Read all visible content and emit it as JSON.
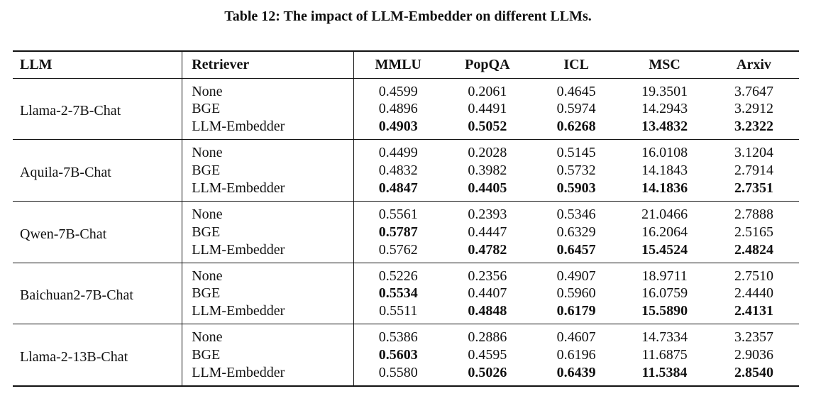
{
  "caption": "Table 12: The impact of LLM-Embedder on different LLMs.",
  "headers": [
    "LLM",
    "Retriever",
    "MMLU",
    "PopQA",
    "ICL",
    "MSC",
    "Arxiv"
  ],
  "groups": [
    {
      "llm": "Llama-2-7B-Chat",
      "rows": [
        {
          "retriever": "None",
          "values": [
            "0.4599",
            "0.2061",
            "0.4645",
            "19.3501",
            "3.7647"
          ],
          "bold": [
            false,
            false,
            false,
            false,
            false
          ]
        },
        {
          "retriever": "BGE",
          "values": [
            "0.4896",
            "0.4491",
            "0.5974",
            "14.2943",
            "3.2912"
          ],
          "bold": [
            false,
            false,
            false,
            false,
            false
          ]
        },
        {
          "retriever": "LLM-Embedder",
          "values": [
            "0.4903",
            "0.5052",
            "0.6268",
            "13.4832",
            "3.2322"
          ],
          "bold": [
            true,
            true,
            true,
            true,
            true
          ]
        }
      ]
    },
    {
      "llm": "Aquila-7B-Chat",
      "rows": [
        {
          "retriever": "None",
          "values": [
            "0.4499",
            "0.2028",
            "0.5145",
            "16.0108",
            "3.1204"
          ],
          "bold": [
            false,
            false,
            false,
            false,
            false
          ]
        },
        {
          "retriever": "BGE",
          "values": [
            "0.4832",
            "0.3982",
            "0.5732",
            "14.1843",
            "2.7914"
          ],
          "bold": [
            false,
            false,
            false,
            false,
            false
          ]
        },
        {
          "retriever": "LLM-Embedder",
          "values": [
            "0.4847",
            "0.4405",
            "0.5903",
            "14.1836",
            "2.7351"
          ],
          "bold": [
            true,
            true,
            true,
            true,
            true
          ]
        }
      ]
    },
    {
      "llm": "Qwen-7B-Chat",
      "rows": [
        {
          "retriever": "None",
          "values": [
            "0.5561",
            "0.2393",
            "0.5346",
            "21.0466",
            "2.7888"
          ],
          "bold": [
            false,
            false,
            false,
            false,
            false
          ]
        },
        {
          "retriever": "BGE",
          "values": [
            "0.5787",
            "0.4447",
            "0.6329",
            "16.2064",
            "2.5165"
          ],
          "bold": [
            true,
            false,
            false,
            false,
            false
          ]
        },
        {
          "retriever": "LLM-Embedder",
          "values": [
            "0.5762",
            "0.4782",
            "0.6457",
            "15.4524",
            "2.4824"
          ],
          "bold": [
            false,
            true,
            true,
            true,
            true
          ]
        }
      ]
    },
    {
      "llm": "Baichuan2-7B-Chat",
      "rows": [
        {
          "retriever": "None",
          "values": [
            "0.5226",
            "0.2356",
            "0.4907",
            "18.9711",
            "2.7510"
          ],
          "bold": [
            false,
            false,
            false,
            false,
            false
          ]
        },
        {
          "retriever": "BGE",
          "values": [
            "0.5534",
            "0.4407",
            "0.5960",
            "16.0759",
            "2.4440"
          ],
          "bold": [
            true,
            false,
            false,
            false,
            false
          ]
        },
        {
          "retriever": "LLM-Embedder",
          "values": [
            "0.5511",
            "0.4848",
            "0.6179",
            "15.5890",
            "2.4131"
          ],
          "bold": [
            false,
            true,
            true,
            true,
            true
          ]
        }
      ]
    },
    {
      "llm": "Llama-2-13B-Chat",
      "rows": [
        {
          "retriever": "None",
          "values": [
            "0.5386",
            "0.2886",
            "0.4607",
            "14.7334",
            "3.2357"
          ],
          "bold": [
            false,
            false,
            false,
            false,
            false
          ]
        },
        {
          "retriever": "BGE",
          "values": [
            "0.5603",
            "0.4595",
            "0.6196",
            "11.6875",
            "2.9036"
          ],
          "bold": [
            true,
            false,
            false,
            false,
            false
          ]
        },
        {
          "retriever": "LLM-Embedder",
          "values": [
            "0.5580",
            "0.5026",
            "0.6439",
            "11.5384",
            "2.8540"
          ],
          "bold": [
            false,
            true,
            true,
            true,
            true
          ]
        }
      ]
    }
  ]
}
